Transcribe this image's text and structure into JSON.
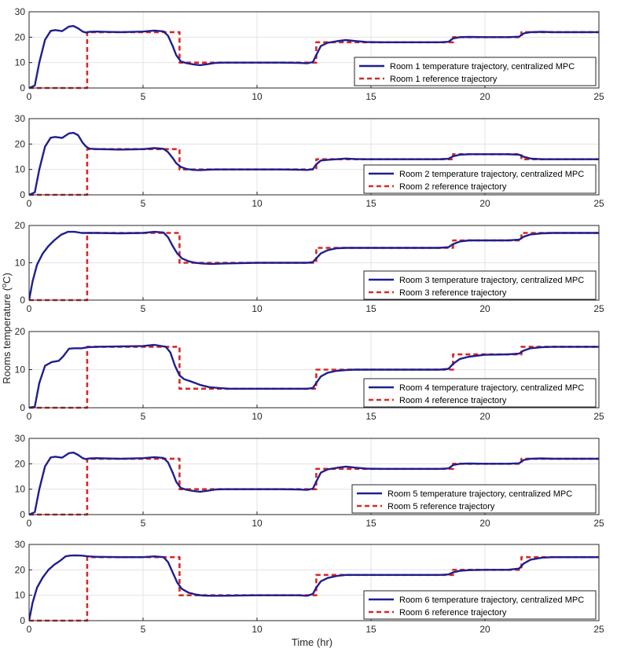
{
  "figure": {
    "xlabel": "Time (hr)",
    "ylabel_main": "Rooms temperature (",
    "ylabel_sup": "o",
    "ylabel_tail": "C)"
  },
  "colors": {
    "temperature": "#1f1f8f",
    "reference": "#d62a26",
    "grid": "#e3e3e3",
    "axis": "#262626"
  },
  "chart_data": [
    {
      "type": "line",
      "title": "",
      "xlabel": "",
      "ylabel": "",
      "xlim": [
        0,
        25
      ],
      "ylim": [
        0,
        30
      ],
      "xticks": [
        0,
        5,
        10,
        15,
        20,
        25
      ],
      "yticks": [
        0,
        10,
        20,
        30
      ],
      "grid": true,
      "legend_position": "right",
      "series": [
        {
          "name": "Room 1 temperature trajectory, centralized MPC",
          "style": "solid",
          "x": [
            0,
            0.25,
            0.45,
            0.7,
            0.95,
            1.15,
            1.45,
            1.75,
            1.95,
            2.15,
            2.35,
            2.5,
            2.65,
            3.0,
            4.0,
            5.0,
            5.5,
            5.9,
            6.1,
            6.3,
            6.45,
            6.65,
            6.9,
            7.2,
            7.5,
            7.85,
            8.2,
            8.6,
            10.0,
            11.0,
            11.8,
            12.2,
            12.45,
            12.6,
            12.8,
            13.1,
            13.5,
            13.9,
            14.3,
            14.8,
            15.5,
            17.0,
            18.0,
            18.4,
            18.6,
            18.9,
            19.3,
            20.0,
            21.0,
            21.5,
            21.7,
            22.0,
            22.5,
            23.0,
            25.0
          ],
          "y": [
            0,
            1,
            10,
            19,
            22.5,
            22.8,
            22.4,
            24.2,
            24.4,
            23.5,
            22.2,
            21.8,
            22.1,
            22.2,
            22.0,
            22.2,
            22.6,
            22.3,
            20.5,
            16.5,
            13.0,
            10.5,
            9.8,
            9.3,
            9.0,
            9.4,
            9.9,
            10.0,
            10.0,
            10.0,
            9.9,
            9.7,
            10.2,
            13.0,
            16.5,
            17.8,
            18.4,
            18.9,
            18.5,
            18.1,
            18.0,
            18.0,
            18.0,
            18.2,
            19.5,
            20.0,
            20.1,
            20.0,
            20.0,
            20.2,
            21.5,
            22.0,
            22.1,
            22.0,
            22.0
          ]
        },
        {
          "name": "Room 1 reference trajectory",
          "style": "dashed",
          "x": [
            0,
            2.55,
            2.55,
            6.6,
            6.6,
            12.6,
            12.6,
            18.6,
            18.6,
            21.6,
            21.6,
            25
          ],
          "y": [
            0,
            0,
            22,
            22,
            10,
            10,
            18,
            18,
            20,
            20,
            22,
            22
          ]
        }
      ]
    },
    {
      "type": "line",
      "title": "",
      "xlabel": "",
      "ylabel": "",
      "xlim": [
        0,
        25
      ],
      "ylim": [
        0,
        30
      ],
      "xticks": [
        0,
        5,
        10,
        15,
        20,
        25
      ],
      "yticks": [
        0,
        10,
        20,
        30
      ],
      "grid": true,
      "legend_position": "bottom-right",
      "series": [
        {
          "name": "Room 2 temperature trajectory, centralized MPC",
          "style": "solid",
          "x": [
            0,
            0.25,
            0.45,
            0.7,
            0.95,
            1.15,
            1.45,
            1.75,
            1.95,
            2.15,
            2.35,
            2.5,
            2.65,
            3.0,
            4.0,
            5.0,
            5.5,
            5.9,
            6.1,
            6.3,
            6.45,
            6.65,
            6.9,
            7.2,
            7.5,
            7.85,
            8.2,
            8.6,
            10.0,
            11.0,
            11.8,
            12.2,
            12.45,
            12.6,
            12.8,
            13.1,
            13.5,
            13.9,
            14.3,
            14.8,
            15.5,
            17.0,
            18.0,
            18.4,
            18.6,
            18.9,
            19.3,
            20.0,
            21.0,
            21.5,
            21.7,
            22.0,
            22.5,
            23.0,
            25.0
          ],
          "y": [
            0,
            1,
            10,
            19,
            22.5,
            22.8,
            22.4,
            24.2,
            24.4,
            23.5,
            20.5,
            19.0,
            18.2,
            18.0,
            17.8,
            18.0,
            18.4,
            18.1,
            16.8,
            14.5,
            12.5,
            11.0,
            10.2,
            9.8,
            9.7,
            9.9,
            10.0,
            10.0,
            10.0,
            10.0,
            9.9,
            9.8,
            10.1,
            12.0,
            13.5,
            13.8,
            14.0,
            14.3,
            14.1,
            14.0,
            14.0,
            14.0,
            14.0,
            14.2,
            15.2,
            15.8,
            16.0,
            16.0,
            16.0,
            15.8,
            15.0,
            14.3,
            14.0,
            14.0,
            14.0
          ]
        },
        {
          "name": "Room 2 reference trajectory",
          "style": "dashed",
          "x": [
            0,
            2.55,
            2.55,
            6.6,
            6.6,
            12.6,
            12.6,
            18.6,
            18.6,
            21.6,
            21.6,
            25
          ],
          "y": [
            0,
            0,
            18,
            18,
            10,
            10,
            14,
            14,
            16,
            16,
            14,
            14
          ]
        }
      ]
    },
    {
      "type": "line",
      "title": "",
      "xlabel": "",
      "ylabel": "",
      "xlim": [
        0,
        25
      ],
      "ylim": [
        0,
        20
      ],
      "xticks": [
        0,
        5,
        10,
        15,
        20,
        25
      ],
      "yticks": [
        0,
        10,
        20
      ],
      "grid": true,
      "legend_position": "bottom-right",
      "series": [
        {
          "name": "Room 3 temperature trajectory, centralized MPC",
          "style": "solid",
          "x": [
            0,
            0.15,
            0.35,
            0.6,
            0.85,
            1.1,
            1.4,
            1.7,
            2.0,
            2.3,
            2.6,
            3.0,
            4.0,
            5.0,
            5.5,
            5.9,
            6.1,
            6.3,
            6.5,
            6.7,
            7.0,
            7.3,
            7.6,
            8.0,
            8.5,
            10.0,
            11.0,
            11.8,
            12.2,
            12.45,
            12.6,
            12.8,
            13.1,
            13.5,
            13.9,
            14.3,
            14.8,
            15.5,
            17.0,
            18.0,
            18.4,
            18.6,
            18.9,
            19.3,
            20.0,
            21.0,
            21.5,
            21.7,
            22.0,
            22.5,
            23.0,
            25.0
          ],
          "y": [
            0,
            5,
            9.5,
            12.5,
            14.5,
            16,
            17.5,
            18.3,
            18.3,
            18.0,
            18.0,
            18.0,
            17.9,
            18.0,
            18.3,
            18.1,
            16.8,
            14.5,
            12.5,
            11.2,
            10.4,
            10.0,
            9.8,
            9.7,
            9.8,
            10.0,
            10.0,
            10.0,
            10.0,
            10.2,
            11.2,
            12.5,
            13.4,
            13.9,
            14.0,
            14.0,
            14.0,
            14.0,
            14.0,
            14.0,
            14.2,
            15.0,
            15.7,
            16.0,
            16.0,
            16.0,
            16.2,
            17.0,
            17.6,
            17.9,
            18.0,
            18.0
          ]
        },
        {
          "name": "Room 3 reference trajectory",
          "style": "dashed",
          "x": [
            0,
            2.55,
            2.55,
            6.6,
            6.6,
            12.6,
            12.6,
            18.6,
            18.6,
            21.6,
            21.6,
            25
          ],
          "y": [
            0,
            0,
            18,
            18,
            10,
            10,
            14,
            14,
            16,
            16,
            18,
            18
          ]
        }
      ]
    },
    {
      "type": "line",
      "title": "",
      "xlabel": "",
      "ylabel": "",
      "xlim": [
        0,
        25
      ],
      "ylim": [
        0,
        20
      ],
      "xticks": [
        0,
        5,
        10,
        15,
        20,
        25
      ],
      "yticks": [
        0,
        10,
        20
      ],
      "grid": true,
      "legend_position": "bottom-right",
      "series": [
        {
          "name": "Room 4 temperature trajectory, centralized MPC",
          "style": "solid",
          "x": [
            0,
            0.25,
            0.45,
            0.7,
            1.0,
            1.3,
            1.5,
            1.75,
            2.0,
            2.3,
            2.6,
            3.0,
            4.0,
            5.0,
            5.5,
            6.0,
            6.2,
            6.4,
            6.6,
            6.8,
            7.1,
            7.5,
            7.9,
            8.3,
            8.8,
            10.0,
            11.0,
            11.8,
            12.2,
            12.45,
            12.6,
            12.8,
            13.1,
            13.5,
            13.9,
            14.3,
            14.8,
            15.5,
            17.0,
            18.0,
            18.4,
            18.6,
            18.9,
            19.3,
            20.0,
            21.0,
            21.5,
            21.7,
            22.0,
            22.5,
            23.0,
            25.0
          ],
          "y": [
            0,
            0.3,
            6.5,
            11,
            12,
            12.3,
            13.5,
            15.5,
            15.6,
            15.6,
            15.9,
            16.0,
            16.1,
            16.2,
            16.5,
            16.0,
            14.5,
            11.0,
            8.5,
            7.5,
            6.9,
            6.0,
            5.4,
            5.2,
            5.0,
            5.0,
            5.0,
            5.0,
            5.0,
            5.2,
            6.5,
            8.2,
            9.2,
            9.7,
            9.9,
            10.0,
            10.0,
            10.0,
            10.0,
            10.0,
            10.2,
            11.5,
            12.8,
            13.4,
            13.9,
            14.0,
            14.2,
            15.0,
            15.6,
            15.9,
            16.0,
            16.0
          ]
        },
        {
          "name": "Room 4 reference trajectory",
          "style": "dashed",
          "x": [
            0,
            2.55,
            2.55,
            6.6,
            6.6,
            12.6,
            12.6,
            18.6,
            18.6,
            21.6,
            21.6,
            25
          ],
          "y": [
            0,
            0,
            16,
            16,
            5,
            5,
            10,
            10,
            14,
            14,
            16,
            16
          ]
        }
      ]
    },
    {
      "type": "line",
      "title": "",
      "xlabel": "",
      "ylabel": "",
      "xlim": [
        0,
        25
      ],
      "ylim": [
        0,
        30
      ],
      "xticks": [
        0,
        5,
        10,
        15,
        20,
        25
      ],
      "yticks": [
        0,
        10,
        20,
        30
      ],
      "grid": true,
      "legend_position": "bottom-right",
      "series": [
        {
          "name": "Room 5 temperature trajectory, centralized MPC",
          "style": "solid",
          "x": [
            0,
            0.25,
            0.45,
            0.7,
            0.95,
            1.15,
            1.45,
            1.75,
            1.95,
            2.15,
            2.35,
            2.5,
            2.65,
            3.0,
            4.0,
            5.0,
            5.5,
            5.9,
            6.1,
            6.3,
            6.45,
            6.65,
            6.9,
            7.2,
            7.5,
            7.85,
            8.2,
            8.6,
            10.0,
            11.0,
            11.8,
            12.2,
            12.45,
            12.6,
            12.8,
            13.1,
            13.5,
            13.9,
            14.3,
            14.8,
            15.5,
            17.0,
            18.0,
            18.4,
            18.6,
            18.9,
            19.3,
            20.0,
            21.0,
            21.5,
            21.7,
            22.0,
            22.5,
            23.0,
            25.0
          ],
          "y": [
            0,
            1,
            10,
            19,
            22.5,
            22.8,
            22.4,
            24.2,
            24.4,
            23.5,
            22.2,
            21.8,
            22.1,
            22.2,
            22.0,
            22.2,
            22.6,
            22.3,
            20.5,
            16.5,
            13.0,
            10.5,
            9.8,
            9.3,
            9.0,
            9.4,
            9.9,
            10.0,
            10.0,
            10.0,
            9.9,
            9.7,
            10.2,
            13.0,
            16.5,
            17.8,
            18.4,
            18.9,
            18.5,
            18.1,
            18.0,
            18.0,
            18.0,
            18.2,
            19.5,
            20.0,
            20.1,
            20.0,
            20.0,
            20.2,
            21.5,
            22.0,
            22.1,
            22.0,
            22.0
          ]
        },
        {
          "name": "Room 5 reference trajectory",
          "style": "dashed",
          "x": [
            0,
            2.55,
            2.55,
            6.6,
            6.6,
            12.6,
            12.6,
            18.6,
            18.6,
            21.6,
            21.6,
            25
          ],
          "y": [
            0,
            0,
            22,
            22,
            10,
            10,
            18,
            18,
            20,
            20,
            22,
            22
          ]
        }
      ]
    },
    {
      "type": "line",
      "title": "",
      "xlabel": "Time (hr)",
      "ylabel": "",
      "xlim": [
        0,
        25
      ],
      "ylim": [
        0,
        30
      ],
      "xticks": [
        0,
        5,
        10,
        15,
        20,
        25
      ],
      "yticks": [
        0,
        10,
        20,
        30
      ],
      "grid": true,
      "legend_position": "bottom-right",
      "series": [
        {
          "name": "Room 6 temperature trajectory, centralized MPC",
          "style": "solid",
          "x": [
            0,
            0.15,
            0.35,
            0.6,
            0.85,
            1.1,
            1.35,
            1.6,
            1.8,
            2.0,
            2.3,
            2.6,
            3.0,
            4.0,
            5.0,
            5.5,
            5.9,
            6.1,
            6.3,
            6.5,
            6.7,
            7.0,
            7.3,
            7.6,
            8.0,
            8.5,
            10.0,
            11.0,
            11.8,
            12.2,
            12.45,
            12.6,
            12.8,
            13.1,
            13.5,
            13.9,
            14.3,
            14.8,
            15.5,
            17.0,
            18.0,
            18.4,
            18.6,
            18.9,
            19.3,
            20.0,
            21.0,
            21.5,
            21.7,
            22.0,
            22.5,
            23.0,
            25.0
          ],
          "y": [
            0,
            7,
            13,
            17,
            20,
            22,
            23.5,
            25.3,
            25.6,
            25.7,
            25.6,
            25.3,
            25.1,
            25.0,
            25.0,
            25.3,
            25.0,
            23.0,
            19.0,
            15.0,
            12.5,
            11.0,
            10.3,
            9.9,
            9.8,
            9.8,
            10.0,
            10.0,
            10.0,
            9.8,
            10.5,
            13.0,
            15.5,
            16.8,
            17.6,
            18.0,
            18.0,
            18.0,
            18.0,
            18.0,
            18.0,
            18.2,
            19.0,
            19.6,
            19.9,
            20.0,
            20.0,
            20.5,
            22.5,
            24.0,
            24.8,
            25.0,
            25.0
          ]
        },
        {
          "name": "Room 6 reference trajectory",
          "style": "dashed",
          "x": [
            0,
            2.55,
            2.55,
            6.6,
            6.6,
            12.6,
            12.6,
            18.6,
            18.6,
            21.6,
            21.6,
            25
          ],
          "y": [
            0,
            0,
            25,
            25,
            10,
            10,
            18,
            18,
            20,
            20,
            25,
            25
          ]
        }
      ]
    }
  ]
}
